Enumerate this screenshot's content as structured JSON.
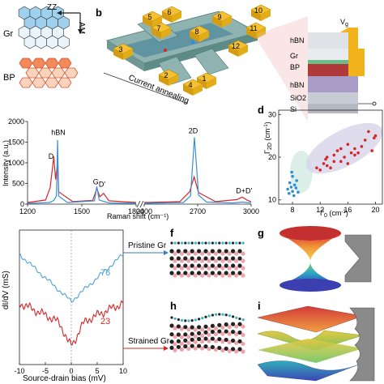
{
  "panels": {
    "a": {
      "gr_label": "Gr",
      "bp_label": "BP",
      "zz_label": "ZZ",
      "am_label": "AM"
    },
    "b": {
      "label": "b",
      "annotation": "Current annealing",
      "vg": "V_g",
      "layers": [
        "hBN",
        "Gr",
        "BP",
        "hBN",
        "SiO2",
        "Si"
      ],
      "contacts": [
        "1",
        "2",
        "3",
        "4",
        "5",
        "6",
        "7",
        "8",
        "9",
        "10",
        "11",
        "12"
      ]
    },
    "c": {
      "xlabel": "Raman shift (cm⁻¹)",
      "ylabel": "Intensity (a.u.)",
      "peaks": [
        "D",
        "hBN",
        "G",
        "D'",
        "2D",
        "D+D'"
      ]
    },
    "d": {
      "label": "d",
      "xlabel": "Γ₀ (cm⁻¹)",
      "ylabel": "Γ₂D (cm⁻¹)"
    },
    "e": {
      "xlabel": "Source-drain bias (mV)",
      "ylabel": "dI/dV (mS)",
      "curve_labels": [
        "76",
        "23"
      ]
    },
    "f": {
      "label": "f",
      "title": "Pristine Gr"
    },
    "g": {
      "label": "g"
    },
    "h": {
      "label": "h",
      "title": "Strained Gr"
    },
    "i": {
      "label": "i"
    }
  },
  "chart_data": [
    {
      "type": "line",
      "panel": "c",
      "xlabel": "Raman shift (cm⁻¹)",
      "ylabel": "Intensity (a.u.)",
      "xlim_left": [
        1200,
        1800
      ],
      "xlim_right": [
        2400,
        3000
      ],
      "ylim": [
        0,
        2000
      ],
      "x_ticks_left": [
        1200,
        1500,
        1800
      ],
      "x_ticks_right": [
        2400,
        2700,
        3000
      ],
      "y_ticks": [
        0,
        500,
        1000,
        1500,
        2000
      ],
      "series": [
        {
          "color": "#d62728",
          "points_left": [
            [
              1200,
              40
            ],
            [
              1300,
              100
            ],
            [
              1325,
              400
            ],
            [
              1345,
              1150
            ],
            [
              1355,
              600
            ],
            [
              1366,
              1000
            ],
            [
              1372,
              300
            ],
            [
              1450,
              60
            ],
            [
              1560,
              90
            ],
            [
              1583,
              380
            ],
            [
              1600,
              180
            ],
            [
              1620,
              260
            ],
            [
              1650,
              80
            ],
            [
              1800,
              40
            ]
          ],
          "points_right": [
            [
              2400,
              40
            ],
            [
              2600,
              60
            ],
            [
              2655,
              300
            ],
            [
              2680,
              660
            ],
            [
              2705,
              280
            ],
            [
              2800,
              60
            ],
            [
              2920,
              110
            ],
            [
              2950,
              170
            ],
            [
              2980,
              90
            ],
            [
              3000,
              60
            ]
          ]
        },
        {
          "color": "#3a8fd6",
          "points_left": [
            [
              1200,
              20
            ],
            [
              1320,
              40
            ],
            [
              1345,
              90
            ],
            [
              1360,
              200
            ],
            [
              1366,
              1550
            ],
            [
              1372,
              200
            ],
            [
              1420,
              40
            ],
            [
              1570,
              80
            ],
            [
              1583,
              430
            ],
            [
              1596,
              100
            ],
            [
              1650,
              30
            ],
            [
              1800,
              20
            ]
          ],
          "points_right": [
            [
              2400,
              20
            ],
            [
              2620,
              40
            ],
            [
              2660,
              200
            ],
            [
              2682,
              1620
            ],
            [
              2705,
              220
            ],
            [
              2750,
              50
            ],
            [
              2900,
              30
            ],
            [
              2950,
              50
            ],
            [
              3000,
              30
            ]
          ]
        }
      ]
    },
    {
      "type": "scatter",
      "panel": "d",
      "xlabel": "Γ₀ (cm⁻¹)",
      "ylabel": "Γ₂D (cm⁻¹)",
      "xlim": [
        6,
        21
      ],
      "ylim": [
        9,
        31
      ],
      "x_ticks": [
        8,
        12,
        16,
        20
      ],
      "y_ticks": [
        10,
        20,
        30
      ],
      "series": [
        {
          "color": "#2a8fd6",
          "x": [
            7.3,
            7.5,
            7.6,
            7.8,
            8.0,
            8.0,
            8.2,
            8.3,
            8.5,
            8.6,
            8.8,
            7.9
          ],
          "y": [
            12.5,
            11.5,
            14.0,
            13.0,
            12.0,
            15.5,
            11.0,
            13.5,
            12.8,
            14.5,
            11.8,
            16.5
          ]
        },
        {
          "color": "#d62728",
          "x": [
            11.5,
            12.0,
            12.5,
            13.0,
            13.0,
            13.5,
            14.0,
            14.0,
            14.5,
            15.0,
            15.0,
            15.5,
            16.0,
            16.0,
            16.5,
            17.0,
            17.0,
            17.5,
            18.0,
            18.5,
            19.0,
            19.5,
            19.8,
            20.0,
            12.8
          ],
          "y": [
            17.5,
            17.0,
            18.5,
            18.0,
            20.0,
            17.5,
            19.0,
            20.5,
            21.5,
            19.0,
            22.0,
            20.0,
            23.0,
            18.5,
            21.0,
            20.5,
            22.0,
            21.0,
            22.5,
            24.0,
            26.0,
            21.5,
            24.5,
            25.0,
            19.5
          ]
        }
      ]
    },
    {
      "type": "line",
      "panel": "e",
      "xlabel": "Source-drain bias (mV)",
      "ylabel": "dI/dV (mS)",
      "xlim": [
        -10,
        10
      ],
      "x_ticks": [
        -10,
        -5,
        0,
        5,
        10
      ],
      "series": [
        {
          "name": "76",
          "color": "#4aa3d8"
        },
        {
          "name": "23",
          "color": "#d62728"
        }
      ]
    }
  ]
}
